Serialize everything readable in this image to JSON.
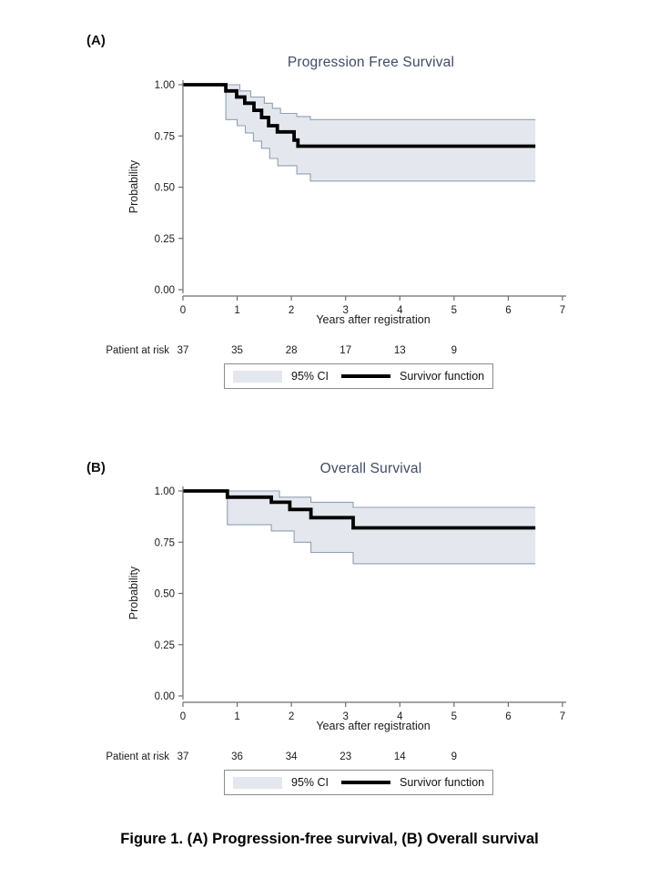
{
  "figure_caption": "Figure 1. (A) Progression-free survival, (B) Overall survival",
  "colors": {
    "title": "#3f4c66",
    "ci_fill": "#e4e7ed",
    "ci_edge": "#8fa0b4",
    "survivor_line": "#000000",
    "axis": "#6e6e6e",
    "tick_text": "#1a1a1a"
  },
  "chart_data": [
    {
      "type": "line",
      "subtype": "kaplan-meier-step",
      "panel_label": "(A)",
      "title": "Progression Free Survival",
      "xlabel": "Years after registration",
      "ylabel": "Probability",
      "xlim": [
        0,
        7
      ],
      "ylim": [
        0,
        1
      ],
      "xticks": [
        "0",
        "1",
        "2",
        "3",
        "4",
        "5",
        "6",
        "7"
      ],
      "yticks": [
        "0.00",
        "0.25",
        "0.50",
        "0.75",
        "1.00"
      ],
      "grid": false,
      "legend_position": "bottom",
      "legend": [
        "95% CI",
        "Survivor function"
      ],
      "risk_label": "Patient at risk",
      "risk_times": [
        0,
        1,
        2,
        3,
        4,
        5
      ],
      "patients_at_risk": [
        37,
        35,
        28,
        17,
        13,
        9
      ],
      "t_end": 6.5,
      "survivor_steps": [
        [
          0,
          1.0
        ],
        [
          0.79,
          0.97
        ],
        [
          0.99,
          0.94
        ],
        [
          1.14,
          0.91
        ],
        [
          1.31,
          0.875
        ],
        [
          1.45,
          0.84
        ],
        [
          1.58,
          0.8
        ],
        [
          1.74,
          0.77
        ],
        [
          2.05,
          0.73
        ],
        [
          2.12,
          0.7
        ]
      ],
      "ci_upper_steps": [
        [
          0.79,
          1.0
        ],
        [
          1.05,
          0.97
        ],
        [
          1.25,
          0.94
        ],
        [
          1.5,
          0.91
        ],
        [
          1.65,
          0.885
        ],
        [
          1.8,
          0.86
        ],
        [
          2.1,
          0.845
        ],
        [
          2.35,
          0.83
        ]
      ],
      "ci_lower_steps": [
        [
          0.79,
          0.83
        ],
        [
          1.0,
          0.8
        ],
        [
          1.15,
          0.765
        ],
        [
          1.3,
          0.725
        ],
        [
          1.45,
          0.69
        ],
        [
          1.6,
          0.64
        ],
        [
          1.75,
          0.605
        ],
        [
          2.1,
          0.565
        ],
        [
          2.35,
          0.53
        ]
      ]
    },
    {
      "type": "line",
      "subtype": "kaplan-meier-step",
      "panel_label": "(B)",
      "title": "Overall Survival",
      "xlabel": "Years after registration",
      "ylabel": "Probability",
      "xlim": [
        0,
        7
      ],
      "ylim": [
        0,
        1
      ],
      "xticks": [
        "0",
        "1",
        "2",
        "3",
        "4",
        "5",
        "6",
        "7"
      ],
      "yticks": [
        "0.00",
        "0.25",
        "0.50",
        "0.75",
        "1.00"
      ],
      "grid": false,
      "legend_position": "bottom",
      "legend": [
        "95% CI",
        "Survivor function"
      ],
      "risk_label": "Patient at risk",
      "risk_times": [
        0,
        1,
        2,
        3,
        4,
        5
      ],
      "patients_at_risk": [
        37,
        36,
        34,
        23,
        14,
        9
      ],
      "t_end": 6.5,
      "survivor_steps": [
        [
          0,
          1.0
        ],
        [
          0.82,
          0.97
        ],
        [
          1.63,
          0.945
        ],
        [
          1.97,
          0.91
        ],
        [
          2.36,
          0.87
        ],
        [
          3.14,
          0.82
        ]
      ],
      "ci_upper_steps": [
        [
          0.82,
          1.0
        ],
        [
          1.78,
          0.97
        ],
        [
          2.36,
          0.945
        ],
        [
          3.14,
          0.92
        ]
      ],
      "ci_lower_steps": [
        [
          0.82,
          0.835
        ],
        [
          1.63,
          0.805
        ],
        [
          2.05,
          0.75
        ],
        [
          2.36,
          0.7
        ],
        [
          3.14,
          0.645
        ]
      ]
    }
  ]
}
